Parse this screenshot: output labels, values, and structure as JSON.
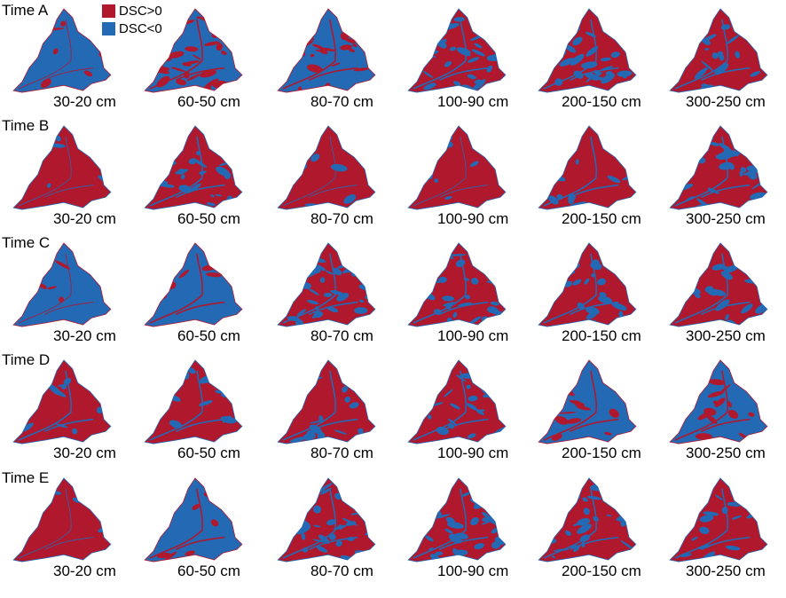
{
  "legend": {
    "positive": {
      "label": "DSC>0",
      "color": "#b0182e"
    },
    "negative": {
      "label": "DSC<0",
      "color": "#2469b4"
    }
  },
  "depths": [
    "30-20 cm",
    "60-50 cm",
    "80-70 cm",
    "100-90 cm",
    "200-150 cm",
    "300-250 cm"
  ],
  "rows": [
    {
      "label": "Time A",
      "positive_share": [
        0.05,
        0.45,
        0.3,
        0.55,
        0.6,
        0.65
      ]
    },
    {
      "label": "Time B",
      "positive_share": [
        0.97,
        0.65,
        0.96,
        0.95,
        0.88,
        0.6
      ]
    },
    {
      "label": "Time C",
      "positive_share": [
        0.05,
        0.1,
        0.6,
        0.65,
        0.7,
        0.8
      ]
    },
    {
      "label": "Time D",
      "positive_share": [
        0.92,
        0.8,
        0.8,
        0.7,
        0.15,
        0.2
      ]
    },
    {
      "label": "Time E",
      "positive_share": [
        0.98,
        0.08,
        0.6,
        0.58,
        0.65,
        0.75
      ]
    }
  ]
}
